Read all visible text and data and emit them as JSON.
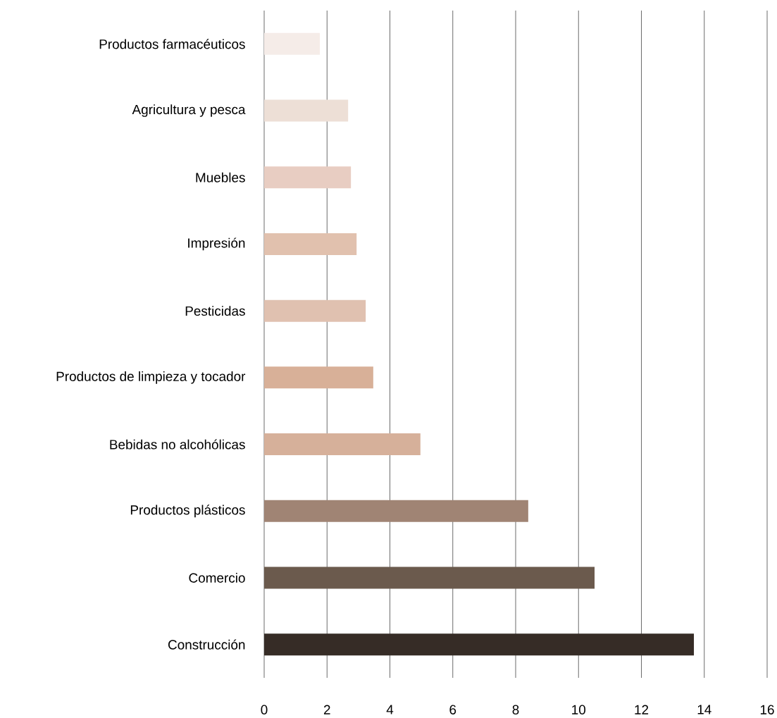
{
  "chart_data": {
    "type": "bar",
    "orientation": "horizontal",
    "categories": [
      "Productos farmacéuticos",
      "Agricultura y pesca",
      "Muebles",
      "Impresión",
      "Pesticidas",
      "Productos de limpieza y tocador",
      "Bebidas no alcohólicas",
      "Productos plásticos",
      "Comercio",
      "Construcción"
    ],
    "values": [
      1.77,
      2.67,
      2.76,
      2.94,
      3.23,
      3.47,
      4.97,
      8.4,
      10.51,
      13.67
    ],
    "colors": [
      "#f5ece8",
      "#eddfd6",
      "#e8cdc2",
      "#e1c1ae",
      "#e0c1b0",
      "#d8b098",
      "#d6b09a",
      "#a08474",
      "#6b5a4d",
      "#362c26"
    ],
    "xlim": [
      0,
      16
    ],
    "xticks": [
      0,
      2,
      4,
      6,
      8,
      10,
      12,
      14,
      16
    ],
    "grid": "x"
  }
}
